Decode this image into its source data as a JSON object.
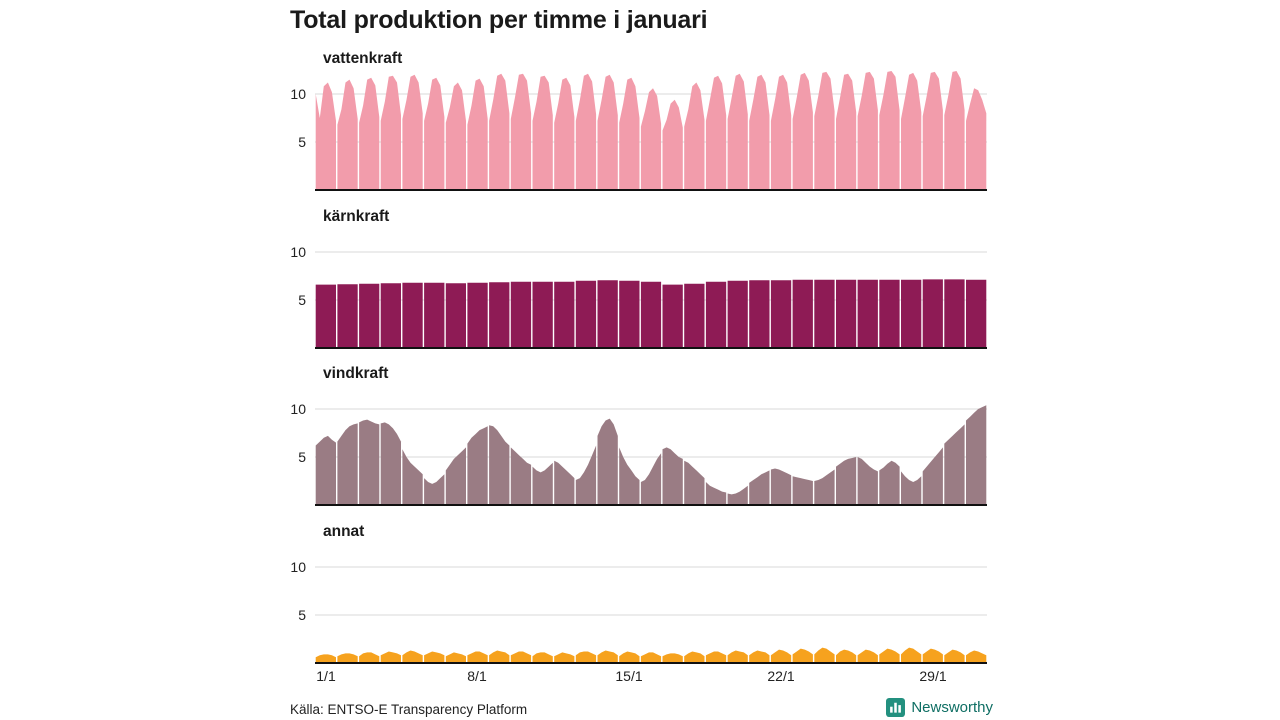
{
  "page": {
    "title": "Total produktion per timme i januari",
    "source": "Källa: ENTSO-E Transparency Platform",
    "brand": "Newsworthy"
  },
  "theme": {
    "background": "#ffffff",
    "text_color": "#1a1a1a",
    "grid_color": "#d8d8d8",
    "axis_color": "#111111",
    "brand_color": "#0e6e63",
    "brand_logo_color": "#23907f"
  },
  "axis": {
    "x_tick_labels": [
      "1/1",
      "8/1",
      "15/1",
      "22/1",
      "29/1"
    ],
    "x_tick_days": [
      1,
      8,
      15,
      22,
      29
    ],
    "y_tick_labels": [
      "5",
      "10"
    ]
  },
  "chart_data": [
    {
      "type": "area",
      "title": "vattenkraft",
      "color": "#F29CAB",
      "ymax": 12.5,
      "grid_ticks": [
        5,
        10
      ],
      "x_unit": "day-of-january",
      "days": [
        [
          10.0,
          7.5,
          10.8,
          11.2,
          10.2,
          7.2
        ],
        [
          6.8,
          8.4,
          11.2,
          11.5,
          10.6,
          7.4
        ],
        [
          7.0,
          8.8,
          11.5,
          11.7,
          10.9,
          7.6
        ],
        [
          7.2,
          9.2,
          11.8,
          11.9,
          11.2,
          7.8
        ],
        [
          7.4,
          9.4,
          11.8,
          12.0,
          11.2,
          8.0
        ],
        [
          7.2,
          9.0,
          11.5,
          11.7,
          10.9,
          7.6
        ],
        [
          7.0,
          8.6,
          10.8,
          11.2,
          10.4,
          7.2
        ],
        [
          6.8,
          8.8,
          11.4,
          11.6,
          10.8,
          7.4
        ],
        [
          7.2,
          9.4,
          11.9,
          12.1,
          11.4,
          8.0
        ],
        [
          7.4,
          9.6,
          12.0,
          12.1,
          11.4,
          8.0
        ],
        [
          7.2,
          9.2,
          11.8,
          11.9,
          11.2,
          7.8
        ],
        [
          7.0,
          9.0,
          11.5,
          11.7,
          10.9,
          7.6
        ],
        [
          7.2,
          9.4,
          11.9,
          12.1,
          11.3,
          7.9
        ],
        [
          7.2,
          9.4,
          11.8,
          12.0,
          11.2,
          7.8
        ],
        [
          7.0,
          9.0,
          11.5,
          11.7,
          10.8,
          7.5
        ],
        [
          6.6,
          8.2,
          10.2,
          10.6,
          9.8,
          6.9
        ],
        [
          6.2,
          7.3,
          9.0,
          9.4,
          8.6,
          6.5
        ],
        [
          6.6,
          8.4,
          10.8,
          11.2,
          10.4,
          7.3
        ],
        [
          7.2,
          9.4,
          11.7,
          11.9,
          11.1,
          7.8
        ],
        [
          7.4,
          9.6,
          11.9,
          12.1,
          11.3,
          7.9
        ],
        [
          7.2,
          9.4,
          11.8,
          12.0,
          11.2,
          7.8
        ],
        [
          7.2,
          9.4,
          11.8,
          12.0,
          11.2,
          7.8
        ],
        [
          7.4,
          9.6,
          12.0,
          12.2,
          11.4,
          8.1
        ],
        [
          7.7,
          9.8,
          12.2,
          12.3,
          11.6,
          8.2
        ],
        [
          7.4,
          9.6,
          12.0,
          12.1,
          11.4,
          8.1
        ],
        [
          7.7,
          9.8,
          12.2,
          12.3,
          11.6,
          8.3
        ],
        [
          7.8,
          9.9,
          12.3,
          12.4,
          11.8,
          8.3
        ],
        [
          7.4,
          9.6,
          12.0,
          12.2,
          11.4,
          8.1
        ],
        [
          7.7,
          9.8,
          12.2,
          12.3,
          11.6,
          8.3
        ],
        [
          7.8,
          9.9,
          12.3,
          12.4,
          11.6,
          8.3
        ],
        [
          7.2,
          9.0,
          10.6,
          10.4,
          9.4,
          8.0
        ]
      ]
    },
    {
      "type": "area",
      "title": "kärnkraft",
      "color": "#8E1B55",
      "ymax": 12.5,
      "grid_ticks": [
        5,
        10
      ],
      "x_unit": "day-of-january",
      "days": [
        [
          6.6
        ],
        [
          6.65
        ],
        [
          6.7
        ],
        [
          6.75
        ],
        [
          6.8
        ],
        [
          6.8
        ],
        [
          6.75
        ],
        [
          6.8
        ],
        [
          6.85
        ],
        [
          6.9
        ],
        [
          6.9
        ],
        [
          6.9
        ],
        [
          7.0
        ],
        [
          7.05
        ],
        [
          7.0
        ],
        [
          6.9
        ],
        [
          6.6
        ],
        [
          6.7
        ],
        [
          6.9
        ],
        [
          7.0
        ],
        [
          7.05
        ],
        [
          7.05
        ],
        [
          7.1
        ],
        [
          7.1
        ],
        [
          7.1
        ],
        [
          7.1
        ],
        [
          7.1
        ],
        [
          7.1
        ],
        [
          7.15
        ],
        [
          7.15
        ],
        [
          7.1
        ]
      ]
    },
    {
      "type": "area",
      "title": "vindkraft",
      "color": "#9A7C84",
      "ymax": 12.5,
      "grid_ticks": [
        5,
        10
      ],
      "x_unit": "day-of-january",
      "days": [
        [
          6.2,
          6.6,
          7.0,
          7.2,
          6.8,
          6.5
        ],
        [
          6.6,
          7.2,
          7.8,
          8.2,
          8.4,
          8.5
        ],
        [
          8.6,
          8.8,
          8.9,
          8.7,
          8.5,
          8.4
        ],
        [
          8.5,
          8.6,
          8.4,
          8.0,
          7.4,
          6.6
        ],
        [
          5.8,
          5.0,
          4.4,
          4.0,
          3.6,
          3.2
        ],
        [
          2.8,
          2.4,
          2.2,
          2.4,
          2.8,
          3.2
        ],
        [
          3.6,
          4.2,
          4.8,
          5.2,
          5.6,
          6.0
        ],
        [
          6.4,
          7.0,
          7.4,
          7.8,
          8.0,
          8.2
        ],
        [
          8.3,
          8.2,
          7.8,
          7.2,
          6.6,
          6.2
        ],
        [
          6.0,
          5.6,
          5.2,
          4.8,
          4.4,
          4.2
        ],
        [
          4.0,
          3.6,
          3.4,
          3.6,
          4.0,
          4.4
        ],
        [
          4.6,
          4.4,
          4.0,
          3.6,
          3.2,
          2.8
        ],
        [
          2.6,
          2.8,
          3.4,
          4.2,
          5.2,
          6.2
        ],
        [
          7.2,
          8.2,
          8.8,
          9.0,
          8.4,
          7.2
        ],
        [
          6.0,
          5.0,
          4.2,
          3.6,
          3.0,
          2.6
        ],
        [
          2.4,
          2.6,
          3.2,
          4.0,
          4.8,
          5.4
        ],
        [
          5.8,
          6.0,
          5.8,
          5.4,
          5.0,
          4.8
        ],
        [
          4.6,
          4.4,
          4.0,
          3.6,
          3.2,
          2.8
        ],
        [
          2.4,
          2.0,
          1.8,
          1.6,
          1.4,
          1.3
        ],
        [
          1.2,
          1.1,
          1.2,
          1.4,
          1.7,
          2.0
        ],
        [
          2.3,
          2.6,
          2.9,
          3.2,
          3.4,
          3.6
        ],
        [
          3.7,
          3.8,
          3.7,
          3.5,
          3.3,
          3.1
        ],
        [
          3.0,
          2.9,
          2.8,
          2.7,
          2.6,
          2.5
        ],
        [
          2.5,
          2.6,
          2.8,
          3.1,
          3.4,
          3.7
        ],
        [
          4.0,
          4.3,
          4.6,
          4.8,
          4.9,
          5.0
        ],
        [
          5.0,
          4.8,
          4.4,
          4.0,
          3.7,
          3.5
        ],
        [
          3.6,
          3.9,
          4.3,
          4.6,
          4.4,
          4.0
        ],
        [
          3.5,
          3.0,
          2.6,
          2.4,
          2.6,
          3.0
        ],
        [
          3.5,
          4.0,
          4.5,
          5.0,
          5.5,
          6.0
        ],
        [
          6.4,
          6.8,
          7.2,
          7.6,
          8.0,
          8.4
        ],
        [
          8.8,
          9.2,
          9.6,
          10.0,
          10.2,
          10.4
        ]
      ]
    },
    {
      "type": "area",
      "title": "annat",
      "color": "#F6A21E",
      "ymax": 12.5,
      "grid_ticks": [
        5,
        10
      ],
      "x_unit": "day-of-january",
      "days": [
        [
          0.6,
          0.8,
          0.9,
          0.9,
          0.8,
          0.6
        ],
        [
          0.7,
          0.9,
          1.0,
          1.0,
          0.9,
          0.7
        ],
        [
          0.7,
          1.0,
          1.1,
          1.1,
          0.9,
          0.7
        ],
        [
          0.8,
          1.0,
          1.2,
          1.1,
          1.0,
          0.8
        ],
        [
          0.8,
          1.1,
          1.3,
          1.2,
          1.0,
          0.8
        ],
        [
          0.8,
          1.0,
          1.2,
          1.1,
          1.0,
          0.8
        ],
        [
          0.7,
          0.9,
          1.1,
          1.0,
          0.9,
          0.7
        ],
        [
          0.8,
          1.0,
          1.2,
          1.2,
          1.0,
          0.8
        ],
        [
          0.8,
          1.1,
          1.3,
          1.2,
          1.1,
          0.8
        ],
        [
          0.8,
          1.0,
          1.2,
          1.2,
          1.0,
          0.8
        ],
        [
          0.7,
          1.0,
          1.1,
          1.1,
          0.9,
          0.7
        ],
        [
          0.7,
          0.9,
          1.1,
          1.0,
          0.9,
          0.7
        ],
        [
          0.8,
          1.1,
          1.2,
          1.2,
          1.0,
          0.8
        ],
        [
          0.8,
          1.1,
          1.3,
          1.2,
          1.1,
          0.8
        ],
        [
          0.7,
          1.0,
          1.2,
          1.1,
          1.0,
          0.7
        ],
        [
          0.7,
          0.9,
          1.1,
          1.1,
          0.9,
          0.7
        ],
        [
          0.7,
          0.9,
          1.0,
          1.0,
          0.9,
          0.7
        ],
        [
          0.7,
          1.0,
          1.2,
          1.1,
          1.0,
          0.7
        ],
        [
          0.8,
          1.0,
          1.2,
          1.2,
          1.0,
          0.8
        ],
        [
          0.8,
          1.1,
          1.3,
          1.2,
          1.1,
          0.8
        ],
        [
          0.8,
          1.1,
          1.3,
          1.2,
          1.1,
          0.8
        ],
        [
          0.8,
          1.1,
          1.4,
          1.3,
          1.1,
          0.8
        ],
        [
          0.9,
          1.2,
          1.5,
          1.4,
          1.2,
          0.9
        ],
        [
          0.9,
          1.3,
          1.6,
          1.5,
          1.2,
          0.9
        ],
        [
          0.8,
          1.2,
          1.4,
          1.3,
          1.1,
          0.8
        ],
        [
          0.8,
          1.1,
          1.4,
          1.3,
          1.1,
          0.8
        ],
        [
          0.9,
          1.2,
          1.5,
          1.4,
          1.2,
          0.9
        ],
        [
          0.9,
          1.3,
          1.6,
          1.5,
          1.2,
          0.9
        ],
        [
          0.9,
          1.2,
          1.5,
          1.4,
          1.2,
          0.9
        ],
        [
          0.8,
          1.1,
          1.4,
          1.3,
          1.1,
          0.8
        ],
        [
          0.8,
          1.1,
          1.3,
          1.2,
          1.0,
          0.8
        ]
      ]
    }
  ]
}
